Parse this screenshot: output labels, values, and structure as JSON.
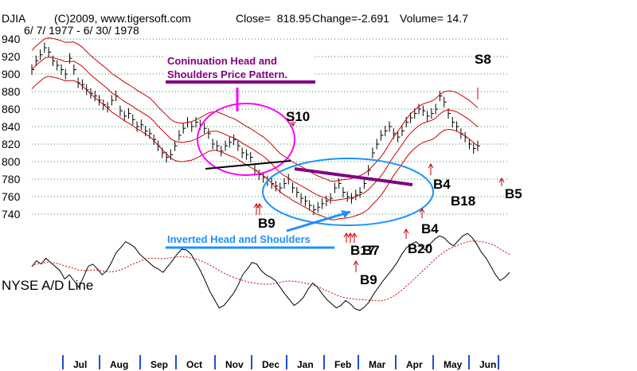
{
  "header": {
    "symbol": "DJIA",
    "source": "(C)2009, www.tigersoft.com",
    "close": "Close=  818.95",
    "change": "Change=-2.691",
    "volume": "Volume= 14.7",
    "daterange": "6/ 7/ 1977 - 6/ 30/ 1978"
  },
  "chart_data": {
    "type": "line",
    "title": "DJIA",
    "subtitle": "6/ 7/ 1977 - 6/ 30/ 1978",
    "ylabel": "",
    "xlabel": "",
    "ylim": [
      735,
      945
    ],
    "yticks": [
      940,
      920,
      900,
      880,
      860,
      840,
      820,
      800,
      780,
      760,
      740
    ],
    "grid": true,
    "months": [
      "Jul",
      "Aug",
      "Sep",
      "Oct",
      "Nov",
      "Dec",
      "Jan",
      "Feb",
      "Mar",
      "Apr",
      "May",
      "Jun"
    ],
    "series": [
      {
        "values": [
          905,
          915,
          922,
          930,
          925,
          915,
          910,
          905,
          900,
          918,
          905,
          890,
          888,
          882,
          878,
          875,
          870,
          865,
          862,
          870,
          875,
          858,
          852,
          855,
          848,
          840,
          842,
          835,
          832,
          825,
          818,
          810,
          805,
          808,
          818,
          830,
          838,
          845,
          840,
          845,
          842,
          838,
          832,
          820,
          818,
          812,
          818,
          822,
          825,
          818,
          810,
          808,
          805,
          790,
          785,
          782,
          778,
          775,
          772,
          770,
          775,
          780,
          770,
          765,
          758,
          755,
          750,
          745,
          748,
          752,
          755,
          758,
          770,
          775,
          765,
          760,
          758,
          762,
          765,
          775,
          790,
          810,
          820,
          830,
          835,
          840,
          832,
          828,
          835,
          845,
          850,
          855,
          860,
          858,
          852,
          855,
          860,
          875,
          868,
          855,
          845,
          840,
          832,
          828,
          820,
          815,
          818
        ]
      }
    ],
    "ad_line": {
      "name": "NYSE A/D Line",
      "values": [
        0.55,
        0.62,
        0.58,
        0.65,
        0.6,
        0.55,
        0.5,
        0.4,
        0.45,
        0.38,
        0.3,
        0.42,
        0.55,
        0.58,
        0.52,
        0.45,
        0.5,
        0.6,
        0.72,
        0.78,
        0.85,
        0.82,
        0.78,
        0.7,
        0.65,
        0.6,
        0.55,
        0.52,
        0.48,
        0.55,
        0.62,
        0.7,
        0.76,
        0.75,
        0.7,
        0.6,
        0.5,
        0.38,
        0.25,
        0.15,
        0.05,
        0.08,
        0.15,
        0.22,
        0.32,
        0.45,
        0.52,
        0.6,
        0.58,
        0.5,
        0.45,
        0.42,
        0.38,
        0.3,
        0.22,
        0.15,
        0.08,
        0.12,
        0.18,
        0.28,
        0.35,
        0.3,
        0.22,
        0.15,
        0.1,
        0.05,
        0.08,
        0.14,
        0.1,
        0.04,
        0.02,
        0.06,
        0.12,
        0.22,
        0.3,
        0.38,
        0.45,
        0.52,
        0.6,
        0.7,
        0.78,
        0.82,
        0.85,
        0.8,
        0.75,
        0.82,
        0.88,
        0.92,
        0.9,
        0.84,
        0.8,
        0.86,
        0.92,
        0.95,
        0.9,
        0.82,
        0.72,
        0.65,
        0.55,
        0.45,
        0.38,
        0.42,
        0.48
      ]
    },
    "signals": [
      {
        "label": "S10",
        "color": "#cc0000"
      },
      {
        "label": "S8",
        "color": "#cc0000"
      },
      {
        "label": "B9",
        "color": "#cc0000"
      },
      {
        "label": "B17",
        "color": "#cc0000"
      },
      {
        "label": "B7",
        "color": "#cc0000"
      },
      {
        "label": "B9",
        "color": "#cc0000"
      },
      {
        "label": "B20",
        "color": "#cc0000"
      },
      {
        "label": "B4",
        "color": "#cc0000"
      },
      {
        "label": "B4",
        "color": "#cc0000"
      },
      {
        "label": "B18",
        "color": "#cc0000"
      },
      {
        "label": "B5",
        "color": "#cc0000"
      }
    ],
    "annotations": {
      "hs_title_line1": "Coninuation Head and",
      "hs_title_line2": "Shoulders Price Pattern.",
      "inv_title": "Inverted Head and Shoulders"
    },
    "colors": {
      "price": "#000000",
      "bands": "#cc0000",
      "grid": "#2e8b57",
      "ad_ma": "#cc0000",
      "hs_purple": "#800080",
      "hs_magenta": "#ff00ff",
      "inv_blue": "#1e90ff"
    }
  }
}
